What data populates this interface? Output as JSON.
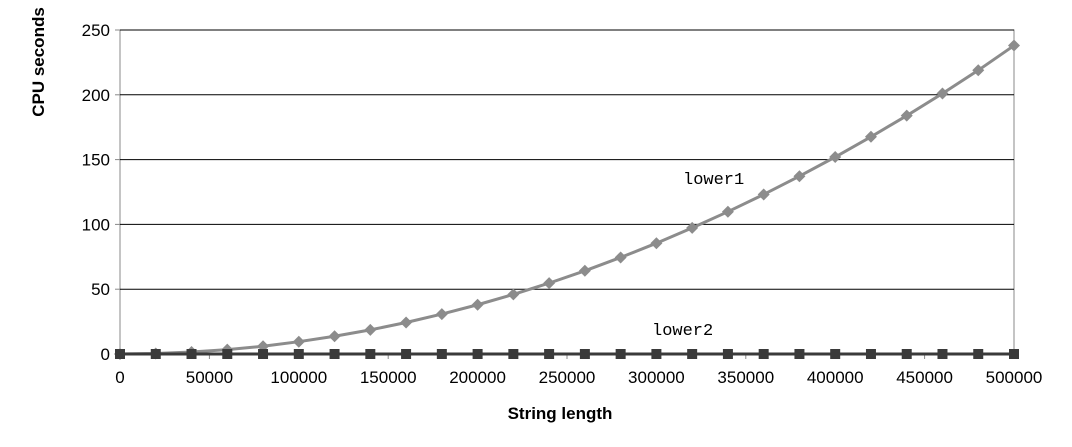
{
  "chart_data": {
    "type": "line",
    "xlabel": "String length",
    "ylabel": "CPU seconds",
    "xlim": [
      0,
      500000
    ],
    "ylim": [
      0,
      250
    ],
    "x_ticks": [
      0,
      50000,
      100000,
      150000,
      200000,
      250000,
      300000,
      350000,
      400000,
      450000,
      500000
    ],
    "y_ticks": [
      0,
      50,
      100,
      150,
      200,
      250
    ],
    "grid": "horizontal",
    "x": [
      0,
      20000,
      40000,
      60000,
      80000,
      100000,
      120000,
      140000,
      160000,
      180000,
      200000,
      220000,
      240000,
      260000,
      280000,
      300000,
      320000,
      340000,
      360000,
      380000,
      400000,
      420000,
      440000,
      460000,
      480000,
      500000
    ],
    "series": [
      {
        "name": "lower1",
        "color": "#8c8c8c",
        "marker": "diamond",
        "values": [
          0,
          0.4,
          1.5,
          3.4,
          6,
          9.5,
          13.7,
          18.6,
          24.3,
          30.8,
          38,
          46,
          54.7,
          64.2,
          74.5,
          85.5,
          97.3,
          109.8,
          123.1,
          137.2,
          152,
          167.6,
          183.9,
          201,
          218.9,
          238
        ]
      },
      {
        "name": "lower2",
        "color": "#3a3a3a",
        "marker": "square",
        "values": [
          0,
          0,
          0,
          0,
          0,
          0,
          0,
          0,
          0,
          0,
          0,
          0,
          0,
          0,
          0,
          0,
          0,
          0,
          0,
          0,
          0,
          0,
          0,
          0,
          0,
          0
        ]
      }
    ]
  }
}
